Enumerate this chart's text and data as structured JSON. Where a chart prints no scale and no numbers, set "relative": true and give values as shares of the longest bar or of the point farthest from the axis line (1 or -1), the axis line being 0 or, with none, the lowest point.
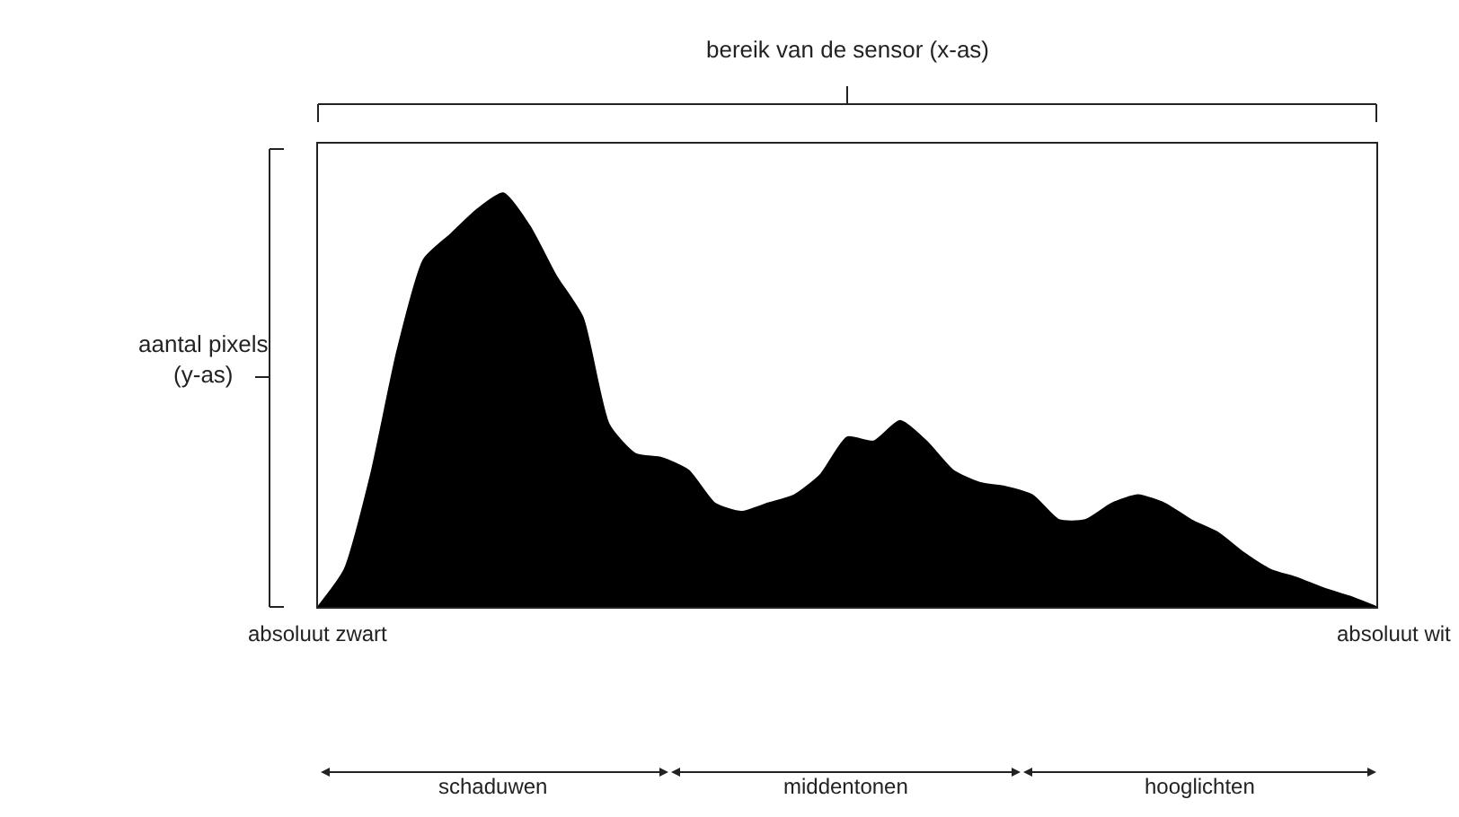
{
  "chart_data": {
    "type": "area",
    "relative": true,
    "color": "#000000",
    "ylabel": "aantal pixels\n(y-as)",
    "categories": [
      null,
      null,
      null,
      null,
      null,
      null,
      null,
      null,
      null,
      null,
      null,
      null,
      null,
      null,
      null,
      null,
      null,
      null,
      null,
      null,
      null,
      null,
      null,
      null,
      null,
      null,
      null,
      null,
      null,
      null,
      null,
      null,
      null,
      null,
      null,
      null,
      null,
      null,
      null,
      null,
      null
    ],
    "values": [
      0,
      0.09,
      0.32,
      0.62,
      0.84,
      0.9,
      0.96,
      1.0,
      0.92,
      0.8,
      0.7,
      0.44,
      0.37,
      0.36,
      0.33,
      0.25,
      0.23,
      0.25,
      0.27,
      0.32,
      0.41,
      0.4,
      0.45,
      0.4,
      0.33,
      0.3,
      0.29,
      0.27,
      0.21,
      0.21,
      0.25,
      0.27,
      0.25,
      0.21,
      0.18,
      0.13,
      0.09,
      0.07,
      0.045,
      0.025,
      0
    ],
    "annotations": [
      "bereik van de sensor (x-as)",
      "absoluut zwart",
      "absoluut wit",
      "schaduwen",
      "middentonen",
      "hooglichten"
    ],
    "legend": false
  }
}
